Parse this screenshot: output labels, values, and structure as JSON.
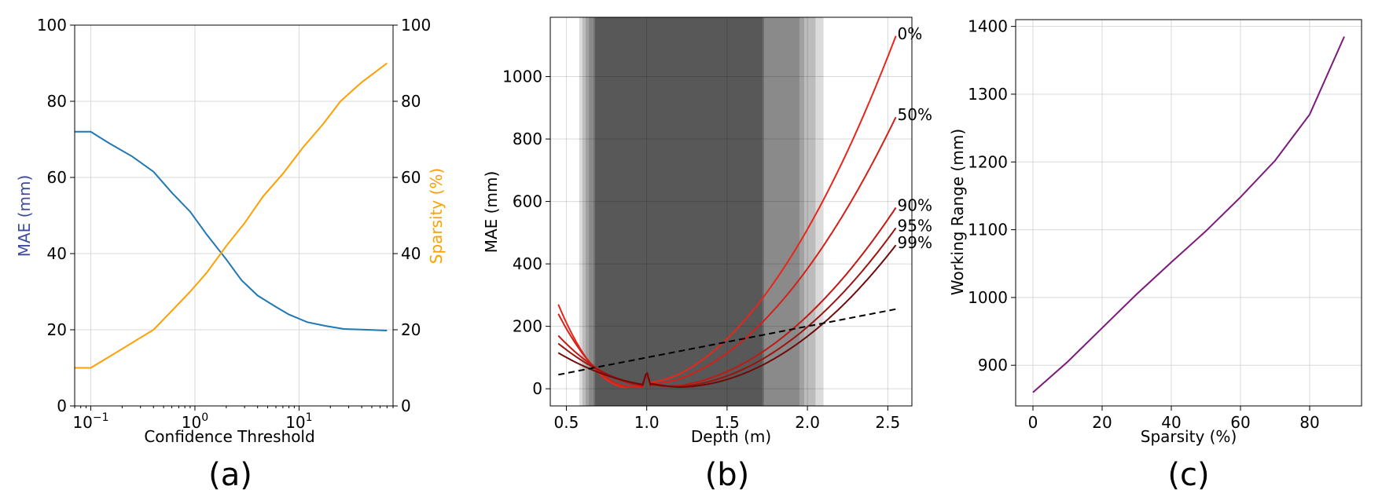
{
  "chart_data": [
    {
      "type": "line",
      "panel_label": "(a)",
      "xlabel": "Confidence Threshold",
      "xscale": "log",
      "xlim": [
        0.07,
        80
      ],
      "xticks": [
        0.1,
        1,
        10
      ],
      "xtick_labels": [
        "10",
        "10",
        "10"
      ],
      "xtick_exponents": [
        "−1",
        "0",
        "1"
      ],
      "ylabel_left": "MAE (mm)",
      "ylabel_right": "Sparsity (%)",
      "ylim_left": [
        0,
        100
      ],
      "ylim_right": [
        0,
        100
      ],
      "yticks": [
        "0",
        "20",
        "40",
        "60",
        "80",
        "100"
      ],
      "grid": true,
      "colors": {
        "mae": "#1f77b4",
        "sparsity": "#ff9f00",
        "ylabel_left": "#3b4ba0",
        "ylabel_right": "#ff9f00"
      },
      "series": [
        {
          "id": "mae",
          "axis": "left",
          "x": [
            0.07,
            0.1,
            0.15,
            0.25,
            0.4,
            0.6,
            0.9,
            1.3,
            2.0,
            2.8,
            4.0,
            6.0,
            8.0,
            12,
            18,
            27,
            45,
            70
          ],
          "y": [
            72,
            72,
            69,
            65.5,
            61.5,
            56,
            51,
            45,
            38.5,
            33,
            29,
            26,
            24,
            22,
            21,
            20.2,
            20,
            19.8
          ]
        },
        {
          "id": "sparsity",
          "axis": "right",
          "x": [
            0.07,
            0.1,
            0.2,
            0.4,
            0.6,
            0.9,
            1.3,
            2.0,
            3.0,
            4.5,
            7.0,
            11,
            17,
            25,
            40,
            70
          ],
          "y": [
            10,
            10,
            15,
            20,
            25,
            30,
            35,
            42,
            48,
            55,
            61,
            68,
            74,
            80,
            85,
            90
          ]
        }
      ]
    },
    {
      "type": "line",
      "panel_label": "(b)",
      "xlabel": "Depth (m)",
      "ylabel": "MAE (mm)",
      "xlim": [
        0.4,
        2.65
      ],
      "ylim": [
        -55,
        1190
      ],
      "xticks": [
        "0.5",
        "1.0",
        "1.5",
        "2.0",
        "2.5"
      ],
      "yticks": [
        "0",
        "200",
        "400",
        "600",
        "800",
        "1000"
      ],
      "grid": true,
      "shaded_bands": [
        {
          "x0": 0.58,
          "x1": 2.1,
          "opacity": 0.14
        },
        {
          "x0": 0.6,
          "x1": 2.05,
          "opacity": 0.14
        },
        {
          "x0": 0.62,
          "x1": 1.98,
          "opacity": 0.14
        },
        {
          "x0": 0.64,
          "x1": 1.95,
          "opacity": 0.14
        },
        {
          "x0": 0.67,
          "x1": 1.73,
          "opacity": 0.2
        },
        {
          "x0": 0.68,
          "x1": 1.72,
          "opacity": 0.2
        }
      ],
      "series": [
        {
          "name": "0%",
          "color": "#e8261a",
          "x0": 0.45,
          "y0": 270,
          "xmin": 0.88,
          "ymin": 5,
          "x1": 2.55,
          "y1": 1130
        },
        {
          "name": "50%",
          "color": "#d42018",
          "x0": 0.45,
          "y0": 240,
          "xmin": 0.92,
          "ymin": 5,
          "x1": 2.55,
          "y1": 870
        },
        {
          "name": "90%",
          "color": "#c01a14",
          "x0": 0.45,
          "y0": 170,
          "xmin": 1.06,
          "ymin": 5,
          "x1": 2.55,
          "y1": 580
        },
        {
          "name": "95%",
          "color": "#9a1410",
          "x0": 0.45,
          "y0": 145,
          "xmin": 1.12,
          "ymin": 5,
          "x1": 2.55,
          "y1": 515
        },
        {
          "name": "99%",
          "color": "#6e0c0a",
          "x0": 0.45,
          "y0": 115,
          "xmin": 1.18,
          "ymin": 5,
          "x1": 2.55,
          "y1": 460
        }
      ],
      "spike": {
        "x": 1.0,
        "y": 55
      },
      "dashed_reference": {
        "x": [
          0.45,
          2.55
        ],
        "y": [
          45,
          255
        ],
        "color": "#000000"
      }
    },
    {
      "type": "line",
      "panel_label": "(c)",
      "xlabel": "Sparsity (%)",
      "ylabel": "Working Range (mm)",
      "xlim": [
        -5,
        95
      ],
      "ylim": [
        840,
        1410
      ],
      "xticks": [
        "0",
        "20",
        "40",
        "60",
        "80"
      ],
      "yticks": [
        "900",
        "1000",
        "1100",
        "1200",
        "1300",
        "1400"
      ],
      "grid": true,
      "series": [
        {
          "color": "#7b1a7b",
          "x": [
            0,
            10,
            20,
            30,
            40,
            50,
            60,
            70,
            80,
            90
          ],
          "y": [
            860,
            905,
            955,
            1005,
            1052,
            1098,
            1148,
            1202,
            1270,
            1385
          ]
        }
      ]
    }
  ]
}
